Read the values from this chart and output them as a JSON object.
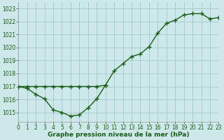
{
  "title": "Graphe pression niveau de la mer (hPa)",
  "bg_color": "#cce8e8",
  "grid_color": "#aacccc",
  "line_color": "#1a5c1a",
  "xlim": [
    0,
    23
  ],
  "ylim": [
    1014.3,
    1023.5
  ],
  "yticks": [
    1015,
    1016,
    1017,
    1018,
    1019,
    1020,
    1021,
    1022,
    1023
  ],
  "xticks": [
    0,
    1,
    2,
    3,
    4,
    5,
    6,
    7,
    8,
    9,
    10,
    11,
    12,
    13,
    14,
    15,
    16,
    17,
    18,
    19,
    20,
    21,
    22,
    23
  ],
  "line1_x": [
    0,
    1,
    2,
    3,
    4,
    5,
    6,
    7,
    8,
    9,
    10,
    11,
    12,
    13,
    14,
    15,
    16,
    17,
    18,
    19,
    20,
    21,
    22,
    23
  ],
  "line1_y": [
    1017.0,
    1017.0,
    1017.0,
    1017.0,
    1017.0,
    1017.0,
    1017.0,
    1017.0,
    1017.0,
    1017.0,
    1017.1,
    1018.2,
    1018.75,
    1019.3,
    1019.5,
    1020.05,
    1021.1,
    1021.85,
    1022.1,
    1022.5,
    1022.6,
    1022.6,
    1022.2,
    1022.3
  ],
  "line2_x": [
    0,
    1,
    2,
    3,
    4,
    5,
    6,
    7,
    8,
    9,
    10
  ],
  "line2_y": [
    1017.0,
    1016.85,
    1016.4,
    1016.05,
    1015.2,
    1015.0,
    1014.72,
    1014.82,
    1015.35,
    1016.05,
    1017.1
  ]
}
